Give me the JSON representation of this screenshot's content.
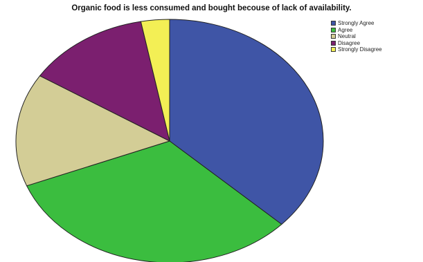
{
  "chart_data": {
    "type": "pie",
    "title": "Organic food is less consumed and bought becouse of lack of availability.",
    "legend_position": "top-right",
    "slices": [
      {
        "label": "Strongly Agree",
        "value": 37,
        "color": "#3f55a6"
      },
      {
        "label": "Agree",
        "value": 32,
        "color": "#3bbd3f"
      },
      {
        "label": "Neutral",
        "value": 15,
        "color": "#d3cd96"
      },
      {
        "label": "Disagree",
        "value": 13,
        "color": "#7b1f6f"
      },
      {
        "label": "Strongly Disagree",
        "value": 3,
        "color": "#f3ef55"
      }
    ]
  }
}
